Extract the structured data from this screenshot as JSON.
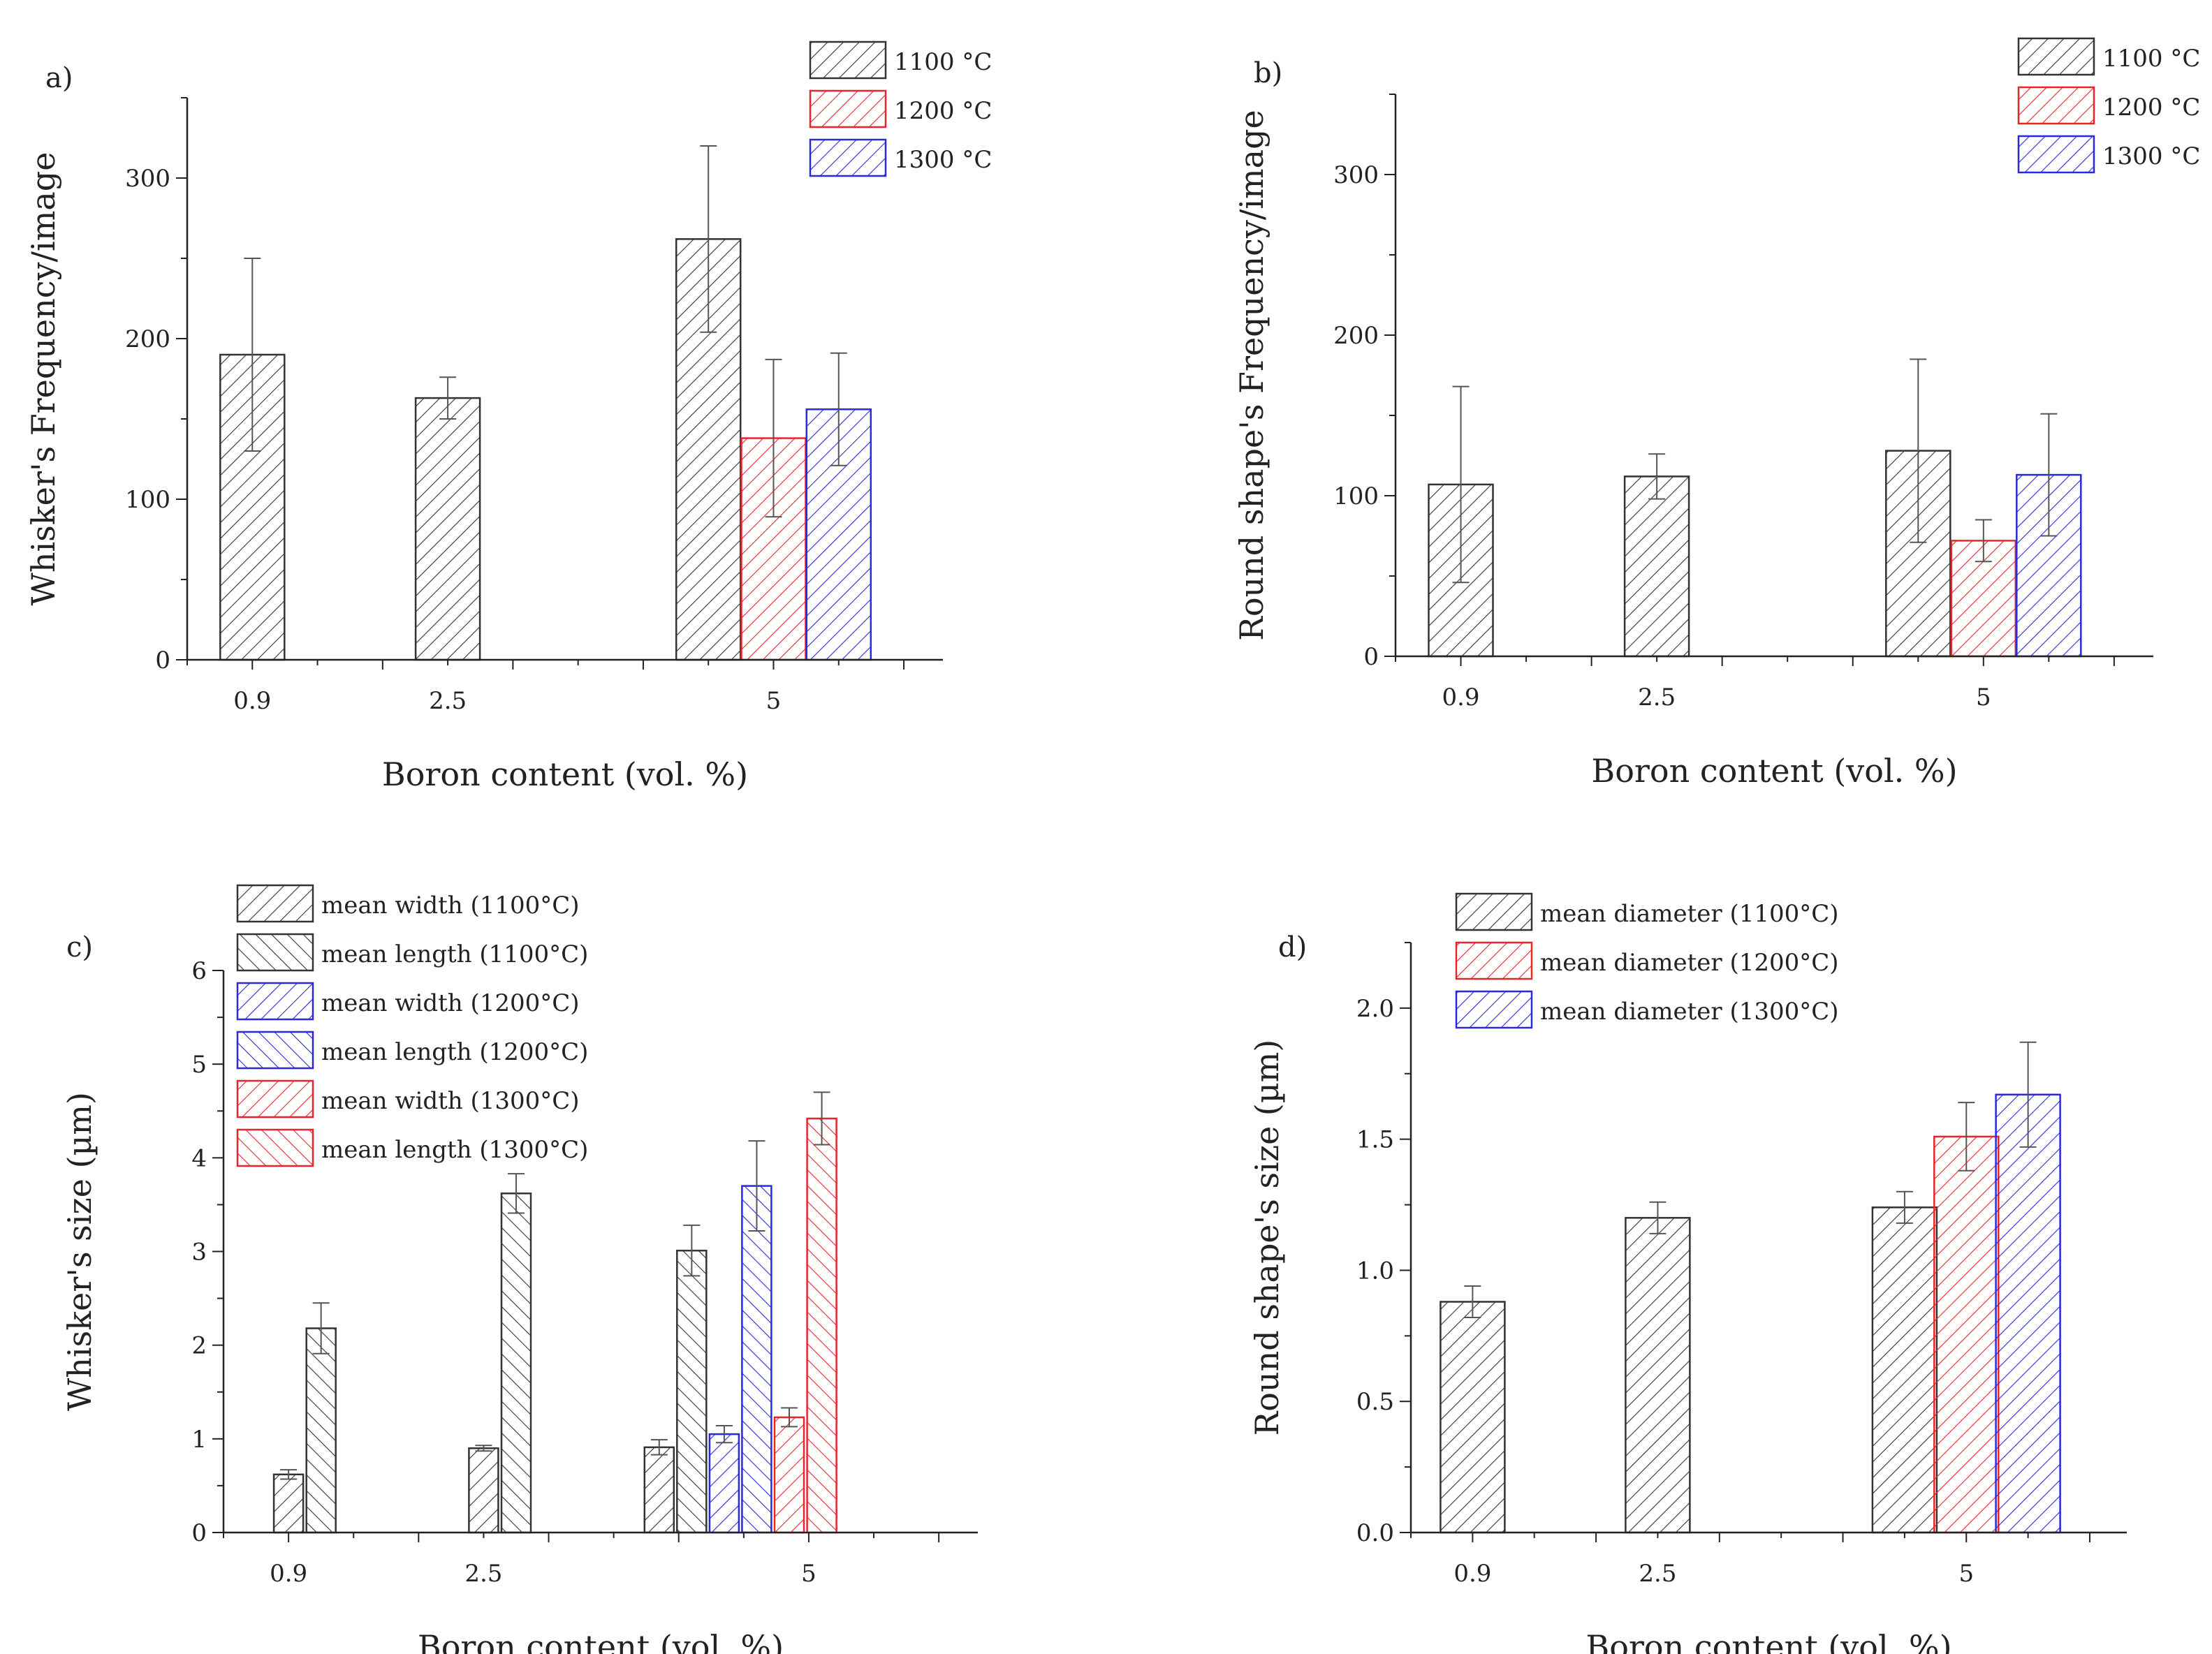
{
  "colors": {
    "black": "#333333",
    "red": "#e8262a",
    "blue": "#2a2adc",
    "axis": "#222222"
  },
  "chart_data": [
    {
      "id": "a",
      "panel_label": "a)",
      "type": "bar",
      "xlabel": "Boron content (vol. %)",
      "ylabel": "Whisker's Frequency/image",
      "ylim": [
        0,
        350
      ],
      "yticks": [
        0,
        100,
        200,
        300
      ],
      "xlim": [
        0.5,
        6.3
      ],
      "categories": [
        "0.9",
        "2.5",
        "5"
      ],
      "category_positions": [
        1,
        2.5,
        5
      ],
      "legend_position": "top-right",
      "series": [
        {
          "name": "1100 °C",
          "legend": "1100 °C",
          "color_key": "black",
          "hatch": "/",
          "x": [
            1,
            2.5,
            4.5
          ],
          "values": [
            190,
            163,
            262
          ],
          "errors": [
            60,
            13,
            58
          ]
        },
        {
          "name": "1200 °C",
          "legend": "1200 °C",
          "color_key": "red",
          "hatch": "/",
          "x": [
            5
          ],
          "values": [
            138
          ],
          "errors": [
            49
          ]
        },
        {
          "name": "1300 °C",
          "legend": "1300 °C",
          "color_key": "blue",
          "hatch": "/",
          "x": [
            5.5
          ],
          "values": [
            156
          ],
          "errors": [
            35
          ]
        }
      ]
    },
    {
      "id": "b",
      "panel_label": "b)",
      "type": "bar",
      "xlabel": "Boron content (vol. %)",
      "ylabel": "Round shape's Frequency/image",
      "ylim": [
        0,
        350
      ],
      "yticks": [
        0,
        100,
        200,
        300
      ],
      "xlim": [
        0.5,
        6.3
      ],
      "categories": [
        "0.9",
        "2.5",
        "5"
      ],
      "category_positions": [
        1,
        2.5,
        5
      ],
      "legend_position": "top-right",
      "series": [
        {
          "name": "1100 °C",
          "legend": "1100 °C",
          "color_key": "black",
          "hatch": "/",
          "x": [
            1,
            2.5,
            4.5
          ],
          "values": [
            107,
            112,
            128
          ],
          "errors": [
            61,
            14,
            57
          ]
        },
        {
          "name": "1200 °C",
          "legend": "1200 °C",
          "color_key": "red",
          "hatch": "/",
          "x": [
            5
          ],
          "values": [
            72
          ],
          "errors": [
            13
          ]
        },
        {
          "name": "1300 °C",
          "legend": "1300 °C",
          "color_key": "blue",
          "hatch": "/",
          "x": [
            5.5
          ],
          "values": [
            113
          ],
          "errors": [
            38
          ]
        }
      ]
    },
    {
      "id": "c",
      "panel_label": "c)",
      "type": "bar",
      "xlabel": "Boron content (vol. %)",
      "ylabel": "Whisker's size (µm)",
      "ylim": [
        0,
        6
      ],
      "yticks": [
        0,
        1,
        2,
        3,
        4,
        5,
        6
      ],
      "xlim": [
        0.5,
        6.3
      ],
      "categories": [
        "0.9",
        "2.5",
        "5"
      ],
      "category_positions": [
        1,
        2.5,
        5
      ],
      "legend_position": "top-left",
      "series": [
        {
          "name": "mean width (1100°C)",
          "legend": "mean width (1100",
          "color_key": "black",
          "hatch": "/",
          "x": [
            1.0,
            2.5,
            3.85
          ],
          "values": [
            0.62,
            0.9,
            0.91
          ],
          "errors": [
            0.05,
            0.03,
            0.08
          ]
        },
        {
          "name": "mean length (1100°C)",
          "legend": "mean length (1100",
          "color_key": "black",
          "hatch": "\\",
          "x": [
            1.25,
            2.75,
            4.1
          ],
          "values": [
            2.18,
            3.62,
            3.01
          ],
          "errors": [
            0.27,
            0.21,
            0.27
          ]
        },
        {
          "name": "mean width (1200°C)",
          "legend": "mean width (1200",
          "color_key": "blue",
          "hatch": "/",
          "x": [
            4.35
          ],
          "values": [
            1.05
          ],
          "errors": [
            0.09
          ]
        },
        {
          "name": "mean length (1200°C)",
          "legend": "mean length (1200",
          "color_key": "blue",
          "hatch": "\\",
          "x": [
            4.6
          ],
          "values": [
            3.7
          ],
          "errors": [
            0.48
          ]
        },
        {
          "name": "mean width (1300°C)",
          "legend": "mean width (1300",
          "color_key": "red",
          "hatch": "/",
          "x": [
            4.85
          ],
          "values": [
            1.23
          ],
          "errors": [
            0.1
          ]
        },
        {
          "name": "mean length (1300°C)",
          "legend": "mean length (1300",
          "color_key": "red",
          "hatch": "\\",
          "x": [
            5.1
          ],
          "values": [
            4.42
          ],
          "errors": [
            0.28
          ]
        }
      ]
    },
    {
      "id": "d",
      "panel_label": "d)",
      "type": "bar",
      "xlabel": "Boron content (vol. %)",
      "ylabel": "Round shape's size (µm)",
      "ylim": [
        0,
        2.25
      ],
      "yticks": [
        0.0,
        0.5,
        1.0,
        1.5,
        2.0
      ],
      "ytick_labels": [
        "0.0",
        "0.5",
        "1.0",
        "1.5",
        "2.0"
      ],
      "xlim": [
        0.5,
        6.3
      ],
      "categories": [
        "0.9",
        "2.5",
        "5"
      ],
      "category_positions": [
        1,
        2.5,
        5
      ],
      "legend_position": "top-left",
      "series": [
        {
          "name": "mean diameter (1100°C)",
          "legend": "mean diameter (1100",
          "color_key": "black",
          "hatch": "/",
          "x": [
            1,
            2.5,
            4.5
          ],
          "values": [
            0.88,
            1.2,
            1.24
          ],
          "errors": [
            0.06,
            0.06,
            0.06
          ]
        },
        {
          "name": "mean diameter (1200°C)",
          "legend": "mean diameter (1200",
          "color_key": "red",
          "hatch": "/",
          "x": [
            5
          ],
          "values": [
            1.51
          ],
          "errors": [
            0.13
          ]
        },
        {
          "name": "mean diameter (1300°C)",
          "legend": "mean diameter (1300",
          "color_key": "blue",
          "hatch": "/",
          "x": [
            5.5
          ],
          "values": [
            1.67
          ],
          "errors": [
            0.2
          ]
        }
      ]
    }
  ]
}
